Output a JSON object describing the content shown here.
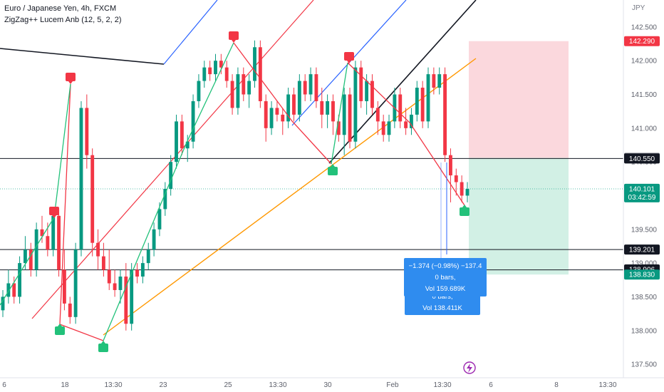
{
  "header": {
    "title": "Euro / Japanese Yen, 4h, FXCM",
    "indicator": "ZigZag++ Lucem Anb (12, 5, 2, 2)",
    "currency": "JPY"
  },
  "chart_data": {
    "type": "candlestick",
    "ylim": [
      137.3,
      142.9
    ],
    "y_ticks": [
      "137.500",
      "138.000",
      "138.500",
      "139.000",
      "139.500",
      "140.000",
      "140.500",
      "141.000",
      "141.500",
      "142.000",
      "142.500"
    ],
    "x_ticks": [
      "6",
      "18",
      "13:30",
      "23",
      "25",
      "13:30",
      "30",
      "Feb",
      "13:30",
      "6",
      "8",
      "13:30"
    ],
    "price_tags": [
      {
        "value": "142.290",
        "style": "red"
      },
      {
        "value": "140.560",
        "style": "gray"
      },
      {
        "value": "140.550",
        "style": "dark"
      },
      {
        "value": "140.101",
        "style": "green",
        "sub": "03:42:59"
      },
      {
        "value": "139.201",
        "style": "dark"
      },
      {
        "value": "138.906",
        "style": "dark"
      },
      {
        "value": "138.830",
        "style": "green"
      }
    ],
    "horizontal_lines": [
      140.55,
      139.2,
      138.9
    ],
    "position_tool": {
      "entry": 140.56,
      "target": 138.83,
      "stop": 142.29
    },
    "measure_boxes": [
      {
        "lines": [
          "0 bars,",
          "Vol 138.411K"
        ]
      },
      {
        "lines": [
          "−1.374 (−0.98%) −137.4",
          "0 bars,",
          "Vol 159.689K"
        ]
      }
    ],
    "candles": [
      [
        138.3,
        138.6,
        138.2,
        138.5
      ],
      [
        138.5,
        138.9,
        138.4,
        138.7
      ],
      [
        138.7,
        138.8,
        138.4,
        138.5
      ],
      [
        138.5,
        139.1,
        138.4,
        139.0
      ],
      [
        139.0,
        139.4,
        138.9,
        139.2
      ],
      [
        139.2,
        139.3,
        138.8,
        138.9
      ],
      [
        138.9,
        139.6,
        138.8,
        139.5
      ],
      [
        139.5,
        139.7,
        139.3,
        139.4
      ],
      [
        139.4,
        139.6,
        139.1,
        139.2
      ],
      [
        139.2,
        139.8,
        139.1,
        139.7
      ],
      [
        139.7,
        139.8,
        138.8,
        138.9
      ],
      [
        138.9,
        139.2,
        138.3,
        138.4
      ],
      [
        138.4,
        138.5,
        138.1,
        138.2
      ],
      [
        138.2,
        139.3,
        138.1,
        139.2
      ],
      [
        139.2,
        141.4,
        139.1,
        141.3
      ],
      [
        141.3,
        141.5,
        140.4,
        140.6
      ],
      [
        140.6,
        140.7,
        139.1,
        139.3
      ],
      [
        139.3,
        139.5,
        138.9,
        139.1
      ],
      [
        139.1,
        139.3,
        138.8,
        138.9
      ],
      [
        138.9,
        139.2,
        138.6,
        138.7
      ],
      [
        138.7,
        138.9,
        138.5,
        138.6
      ],
      [
        138.6,
        138.9,
        138.4,
        138.8
      ],
      [
        138.8,
        139.0,
        138.0,
        138.1
      ],
      [
        138.1,
        139.0,
        138.0,
        138.9
      ],
      [
        138.9,
        139.0,
        138.7,
        138.8
      ],
      [
        138.8,
        139.1,
        138.7,
        139.0
      ],
      [
        139.0,
        139.3,
        138.9,
        139.2
      ],
      [
        139.2,
        139.6,
        139.1,
        139.5
      ],
      [
        139.5,
        139.9,
        139.4,
        139.8
      ],
      [
        139.8,
        140.2,
        139.7,
        140.1
      ],
      [
        140.1,
        140.6,
        140.0,
        140.5
      ],
      [
        140.5,
        141.2,
        140.4,
        141.1
      ],
      [
        141.1,
        141.2,
        140.6,
        140.7
      ],
      [
        140.7,
        140.9,
        140.5,
        140.8
      ],
      [
        140.8,
        141.5,
        140.7,
        141.4
      ],
      [
        141.4,
        141.8,
        141.3,
        141.7
      ],
      [
        141.7,
        142.0,
        141.6,
        141.9
      ],
      [
        141.9,
        142.0,
        141.7,
        141.8
      ],
      [
        141.8,
        142.1,
        141.7,
        142.0
      ],
      [
        142.0,
        142.1,
        141.8,
        141.9
      ],
      [
        141.9,
        142.0,
        141.6,
        141.7
      ],
      [
        141.7,
        141.8,
        141.2,
        141.3
      ],
      [
        141.3,
        141.9,
        141.2,
        141.8
      ],
      [
        141.8,
        141.9,
        141.4,
        141.5
      ],
      [
        141.5,
        141.8,
        141.3,
        141.7
      ],
      [
        141.7,
        142.3,
        141.6,
        142.2
      ],
      [
        142.2,
        142.3,
        141.3,
        141.4
      ],
      [
        141.4,
        141.5,
        140.8,
        141.0
      ],
      [
        141.0,
        141.4,
        140.9,
        141.3
      ],
      [
        141.3,
        141.4,
        141.1,
        141.2
      ],
      [
        141.2,
        141.3,
        140.9,
        141.1
      ],
      [
        141.1,
        141.6,
        141.0,
        141.5
      ],
      [
        141.5,
        141.6,
        141.1,
        141.2
      ],
      [
        141.2,
        141.8,
        141.1,
        141.7
      ],
      [
        141.7,
        141.8,
        141.4,
        141.5
      ],
      [
        141.5,
        141.9,
        141.4,
        141.8
      ],
      [
        141.8,
        141.9,
        141.3,
        141.4
      ],
      [
        141.4,
        141.6,
        141.0,
        141.2
      ],
      [
        141.2,
        141.5,
        141.0,
        141.4
      ],
      [
        141.4,
        141.5,
        140.9,
        141.1
      ],
      [
        141.1,
        141.2,
        140.8,
        140.9
      ],
      [
        140.9,
        141.6,
        140.6,
        141.5
      ],
      [
        141.5,
        141.6,
        140.7,
        140.8
      ],
      [
        140.8,
        142.0,
        140.7,
        141.9
      ],
      [
        141.9,
        142.0,
        141.3,
        141.4
      ],
      [
        141.4,
        141.8,
        141.2,
        141.7
      ],
      [
        141.7,
        141.8,
        141.2,
        141.3
      ],
      [
        141.3,
        141.4,
        140.9,
        141.1
      ],
      [
        141.1,
        141.2,
        140.8,
        140.9
      ],
      [
        140.9,
        141.2,
        140.8,
        141.1
      ],
      [
        141.1,
        141.6,
        141.0,
        141.5
      ],
      [
        141.5,
        141.6,
        141.0,
        141.1
      ],
      [
        141.1,
        141.3,
        140.9,
        141.0
      ],
      [
        141.0,
        141.3,
        140.9,
        141.2
      ],
      [
        141.2,
        141.7,
        141.1,
        141.6
      ],
      [
        141.6,
        141.7,
        141.0,
        141.1
      ],
      [
        141.1,
        141.9,
        141.0,
        141.8
      ],
      [
        141.8,
        141.9,
        141.5,
        141.6
      ],
      [
        141.6,
        141.9,
        141.5,
        141.8
      ],
      [
        141.8,
        141.9,
        140.5,
        140.6
      ],
      [
        140.6,
        140.7,
        139.9,
        140.3
      ],
      [
        140.3,
        140.4,
        140.0,
        140.2
      ],
      [
        140.2,
        140.3,
        139.9,
        140.0
      ],
      [
        140.0,
        140.2,
        139.9,
        140.1
      ]
    ]
  }
}
